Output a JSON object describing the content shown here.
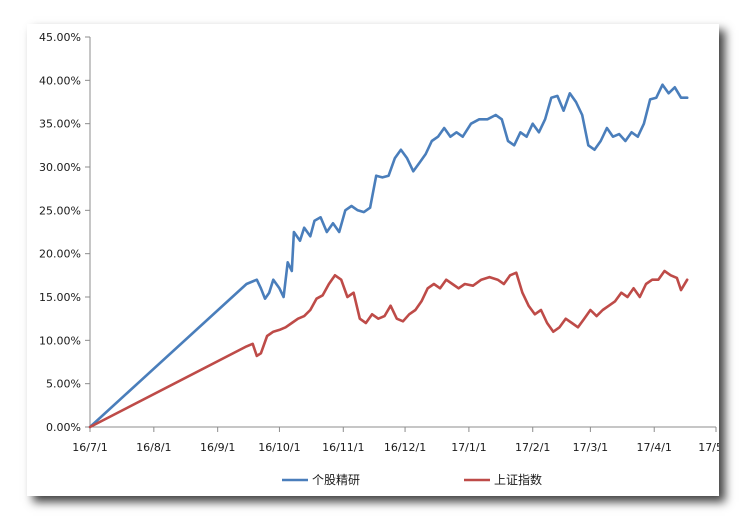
{
  "chart_data": {
    "type": "line",
    "title": "",
    "xlabel": "",
    "ylabel": "",
    "x_ticks": [
      "16/7/1",
      "16/8/1",
      "16/9/1",
      "16/10/1",
      "16/11/1",
      "16/12/1",
      "17/1/1",
      "17/2/1",
      "17/3/1",
      "17/4/1",
      "17/5/1"
    ],
    "y_ticks": [
      "0.00%",
      "5.00%",
      "10.00%",
      "15.00%",
      "20.00%",
      "25.00%",
      "30.00%",
      "35.00%",
      "40.00%",
      "45.00%"
    ],
    "xlim": [
      "2016-07-01",
      "2017-05-01"
    ],
    "ylim": [
      0,
      45
    ],
    "y_unit": "%",
    "grid": false,
    "legend_position": "bottom",
    "series": [
      {
        "name": "个股精研",
        "color": "#4a7ebb",
        "points": [
          [
            "2016-07-01",
            0.0
          ],
          [
            "2016-09-15",
            16.5
          ],
          [
            "2016-09-20",
            17.0
          ],
          [
            "2016-09-22",
            16.0
          ],
          [
            "2016-09-24",
            14.8
          ],
          [
            "2016-09-26",
            15.5
          ],
          [
            "2016-09-28",
            17.0
          ],
          [
            "2016-10-01",
            16.0
          ],
          [
            "2016-10-03",
            15.0
          ],
          [
            "2016-10-05",
            19.0
          ],
          [
            "2016-10-07",
            18.0
          ],
          [
            "2016-10-08",
            22.5
          ],
          [
            "2016-10-11",
            21.5
          ],
          [
            "2016-10-13",
            23.0
          ],
          [
            "2016-10-16",
            22.0
          ],
          [
            "2016-10-18",
            23.8
          ],
          [
            "2016-10-21",
            24.2
          ],
          [
            "2016-10-24",
            22.5
          ],
          [
            "2016-10-27",
            23.5
          ],
          [
            "2016-10-30",
            22.5
          ],
          [
            "2016-11-02",
            25.0
          ],
          [
            "2016-11-05",
            25.5
          ],
          [
            "2016-11-08",
            25.0
          ],
          [
            "2016-11-11",
            24.8
          ],
          [
            "2016-11-14",
            25.3
          ],
          [
            "2016-11-17",
            29.0
          ],
          [
            "2016-11-20",
            28.8
          ],
          [
            "2016-11-23",
            29.0
          ],
          [
            "2016-11-26",
            31.0
          ],
          [
            "2016-11-29",
            32.0
          ],
          [
            "2016-12-02",
            31.0
          ],
          [
            "2016-12-05",
            29.5
          ],
          [
            "2016-12-08",
            30.5
          ],
          [
            "2016-12-11",
            31.5
          ],
          [
            "2016-12-14",
            33.0
          ],
          [
            "2016-12-17",
            33.5
          ],
          [
            "2016-12-20",
            34.5
          ],
          [
            "2016-12-23",
            33.5
          ],
          [
            "2016-12-26",
            34.0
          ],
          [
            "2016-12-29",
            33.5
          ],
          [
            "2017-01-02",
            35.0
          ],
          [
            "2017-01-06",
            35.5
          ],
          [
            "2017-01-10",
            35.5
          ],
          [
            "2017-01-14",
            36.0
          ],
          [
            "2017-01-17",
            35.5
          ],
          [
            "2017-01-20",
            33.0
          ],
          [
            "2017-01-23",
            32.5
          ],
          [
            "2017-01-26",
            34.0
          ],
          [
            "2017-01-29",
            33.5
          ],
          [
            "2017-02-01",
            35.0
          ],
          [
            "2017-02-04",
            34.0
          ],
          [
            "2017-02-07",
            35.5
          ],
          [
            "2017-02-10",
            38.0
          ],
          [
            "2017-02-13",
            38.2
          ],
          [
            "2017-02-16",
            36.5
          ],
          [
            "2017-02-19",
            38.5
          ],
          [
            "2017-02-22",
            37.5
          ],
          [
            "2017-02-25",
            36.0
          ],
          [
            "2017-02-28",
            32.5
          ],
          [
            "2017-03-03",
            32.0
          ],
          [
            "2017-03-06",
            33.0
          ],
          [
            "2017-03-09",
            34.5
          ],
          [
            "2017-03-12",
            33.5
          ],
          [
            "2017-03-15",
            33.8
          ],
          [
            "2017-03-18",
            33.0
          ],
          [
            "2017-03-21",
            34.0
          ],
          [
            "2017-03-24",
            33.5
          ],
          [
            "2017-03-27",
            35.0
          ],
          [
            "2017-03-30",
            37.8
          ],
          [
            "2017-04-02",
            38.0
          ],
          [
            "2017-04-05",
            39.5
          ],
          [
            "2017-04-08",
            38.5
          ],
          [
            "2017-04-11",
            39.2
          ],
          [
            "2017-04-14",
            38.0
          ],
          [
            "2017-04-17",
            38.0
          ]
        ]
      },
      {
        "name": "上证指数",
        "color": "#be4b48",
        "points": [
          [
            "2016-07-01",
            0.0
          ],
          [
            "2016-09-15",
            9.3
          ],
          [
            "2016-09-18",
            9.6
          ],
          [
            "2016-09-20",
            8.2
          ],
          [
            "2016-09-22",
            8.5
          ],
          [
            "2016-09-25",
            10.5
          ],
          [
            "2016-09-28",
            11.0
          ],
          [
            "2016-10-01",
            11.2
          ],
          [
            "2016-10-04",
            11.5
          ],
          [
            "2016-10-07",
            12.0
          ],
          [
            "2016-10-10",
            12.5
          ],
          [
            "2016-10-13",
            12.8
          ],
          [
            "2016-10-16",
            13.5
          ],
          [
            "2016-10-19",
            14.8
          ],
          [
            "2016-10-22",
            15.2
          ],
          [
            "2016-10-25",
            16.5
          ],
          [
            "2016-10-28",
            17.5
          ],
          [
            "2016-10-31",
            17.0
          ],
          [
            "2016-11-03",
            15.0
          ],
          [
            "2016-11-06",
            15.5
          ],
          [
            "2016-11-09",
            12.5
          ],
          [
            "2016-11-12",
            12.0
          ],
          [
            "2016-11-15",
            13.0
          ],
          [
            "2016-11-18",
            12.5
          ],
          [
            "2016-11-21",
            12.8
          ],
          [
            "2016-11-24",
            14.0
          ],
          [
            "2016-11-27",
            12.5
          ],
          [
            "2016-11-30",
            12.2
          ],
          [
            "2016-12-03",
            13.0
          ],
          [
            "2016-12-06",
            13.5
          ],
          [
            "2016-12-09",
            14.5
          ],
          [
            "2016-12-12",
            16.0
          ],
          [
            "2016-12-15",
            16.5
          ],
          [
            "2016-12-18",
            16.0
          ],
          [
            "2016-12-21",
            17.0
          ],
          [
            "2016-12-24",
            16.5
          ],
          [
            "2016-12-27",
            16.0
          ],
          [
            "2016-12-30",
            16.5
          ],
          [
            "2017-01-03",
            16.3
          ],
          [
            "2017-01-07",
            17.0
          ],
          [
            "2017-01-11",
            17.3
          ],
          [
            "2017-01-15",
            17.0
          ],
          [
            "2017-01-18",
            16.5
          ],
          [
            "2017-01-21",
            17.5
          ],
          [
            "2017-01-24",
            17.8
          ],
          [
            "2017-01-27",
            15.5
          ],
          [
            "2017-01-30",
            14.0
          ],
          [
            "2017-02-02",
            13.0
          ],
          [
            "2017-02-05",
            13.5
          ],
          [
            "2017-02-08",
            12.0
          ],
          [
            "2017-02-11",
            11.0
          ],
          [
            "2017-02-14",
            11.5
          ],
          [
            "2017-02-17",
            12.5
          ],
          [
            "2017-02-20",
            12.0
          ],
          [
            "2017-02-23",
            11.5
          ],
          [
            "2017-02-26",
            12.5
          ],
          [
            "2017-03-01",
            13.5
          ],
          [
            "2017-03-04",
            12.8
          ],
          [
            "2017-03-07",
            13.5
          ],
          [
            "2017-03-10",
            14.0
          ],
          [
            "2017-03-13",
            14.5
          ],
          [
            "2017-03-16",
            15.5
          ],
          [
            "2017-03-19",
            15.0
          ],
          [
            "2017-03-22",
            16.0
          ],
          [
            "2017-03-25",
            15.0
          ],
          [
            "2017-03-28",
            16.5
          ],
          [
            "2017-03-31",
            17.0
          ],
          [
            "2017-04-03",
            17.0
          ],
          [
            "2017-04-06",
            18.0
          ],
          [
            "2017-04-09",
            17.5
          ],
          [
            "2017-04-12",
            17.2
          ],
          [
            "2017-04-14",
            15.8
          ],
          [
            "2017-04-17",
            17.0
          ]
        ]
      }
    ]
  }
}
